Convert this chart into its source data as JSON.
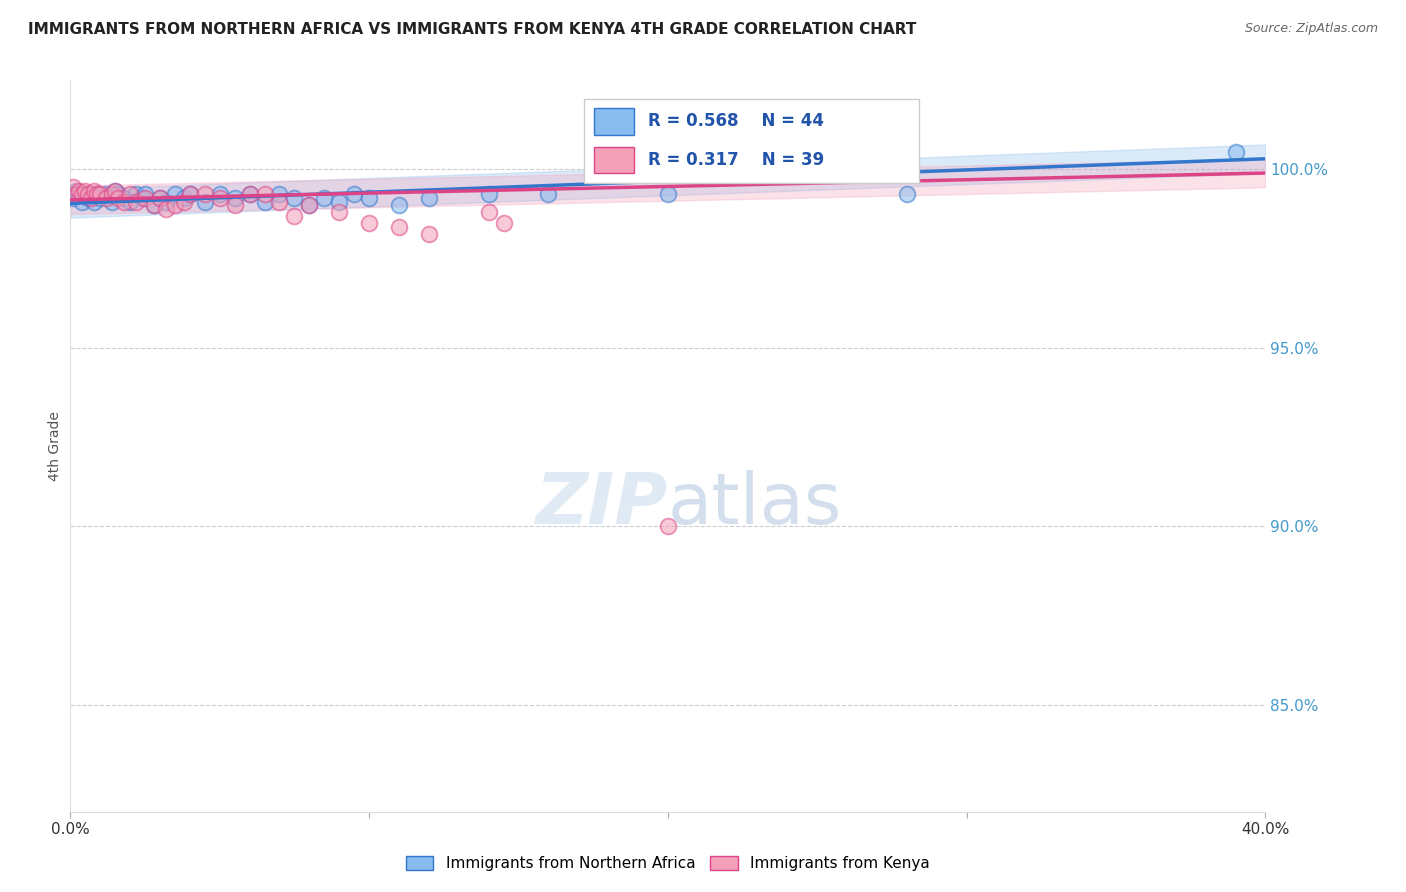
{
  "title": "IMMIGRANTS FROM NORTHERN AFRICA VS IMMIGRANTS FROM KENYA 4TH GRADE CORRELATION CHART",
  "source": "Source: ZipAtlas.com",
  "ylabel": "4th Grade",
  "yaxis_labels": [
    "100.0%",
    "95.0%",
    "90.0%",
    "85.0%"
  ],
  "yaxis_values": [
    1.0,
    0.95,
    0.9,
    0.85
  ],
  "xlim": [
    0.0,
    0.4
  ],
  "ylim": [
    0.82,
    1.025
  ],
  "legend_label1": "Immigrants from Northern Africa",
  "legend_label2": "Immigrants from Kenya",
  "R1": 0.568,
  "N1": 44,
  "R2": 0.317,
  "N2": 39,
  "color_blue": "#88bbee",
  "color_pink": "#f4a0b8",
  "color_blue_line": "#3377cc",
  "color_pink_line": "#dd4488",
  "color_blue_text": "#2255aa",
  "color_right_axis": "#4499cc",
  "scatter_blue": [
    [
      0.001,
      0.992
    ],
    [
      0.002,
      0.994
    ],
    [
      0.003,
      0.993
    ],
    [
      0.004,
      0.991
    ],
    [
      0.005,
      0.993
    ],
    [
      0.006,
      0.992
    ],
    [
      0.007,
      0.993
    ],
    [
      0.008,
      0.991
    ],
    [
      0.009,
      0.993
    ],
    [
      0.01,
      0.992
    ],
    [
      0.012,
      0.993
    ],
    [
      0.014,
      0.991
    ],
    [
      0.015,
      0.994
    ],
    [
      0.016,
      0.993
    ],
    [
      0.018,
      0.992
    ],
    [
      0.02,
      0.991
    ],
    [
      0.022,
      0.993
    ],
    [
      0.024,
      0.992
    ],
    [
      0.025,
      0.993
    ],
    [
      0.028,
      0.99
    ],
    [
      0.03,
      0.992
    ],
    [
      0.032,
      0.991
    ],
    [
      0.035,
      0.993
    ],
    [
      0.038,
      0.992
    ],
    [
      0.04,
      0.993
    ],
    [
      0.045,
      0.991
    ],
    [
      0.05,
      0.993
    ],
    [
      0.055,
      0.992
    ],
    [
      0.06,
      0.993
    ],
    [
      0.065,
      0.991
    ],
    [
      0.07,
      0.993
    ],
    [
      0.075,
      0.992
    ],
    [
      0.08,
      0.99
    ],
    [
      0.085,
      0.992
    ],
    [
      0.09,
      0.991
    ],
    [
      0.095,
      0.993
    ],
    [
      0.1,
      0.992
    ],
    [
      0.11,
      0.99
    ],
    [
      0.12,
      0.992
    ],
    [
      0.14,
      0.993
    ],
    [
      0.16,
      0.993
    ],
    [
      0.2,
      0.993
    ],
    [
      0.28,
      0.993
    ],
    [
      0.39,
      1.005
    ]
  ],
  "scatter_pink": [
    [
      0.001,
      0.995
    ],
    [
      0.002,
      0.993
    ],
    [
      0.003,
      0.994
    ],
    [
      0.004,
      0.993
    ],
    [
      0.005,
      0.994
    ],
    [
      0.006,
      0.993
    ],
    [
      0.007,
      0.992
    ],
    [
      0.008,
      0.994
    ],
    [
      0.009,
      0.993
    ],
    [
      0.01,
      0.993
    ],
    [
      0.012,
      0.992
    ],
    [
      0.014,
      0.993
    ],
    [
      0.015,
      0.994
    ],
    [
      0.016,
      0.992
    ],
    [
      0.018,
      0.991
    ],
    [
      0.02,
      0.993
    ],
    [
      0.022,
      0.991
    ],
    [
      0.025,
      0.992
    ],
    [
      0.028,
      0.99
    ],
    [
      0.03,
      0.992
    ],
    [
      0.032,
      0.989
    ],
    [
      0.035,
      0.99
    ],
    [
      0.038,
      0.991
    ],
    [
      0.04,
      0.993
    ],
    [
      0.045,
      0.993
    ],
    [
      0.05,
      0.992
    ],
    [
      0.055,
      0.99
    ],
    [
      0.06,
      0.993
    ],
    [
      0.065,
      0.993
    ],
    [
      0.07,
      0.991
    ],
    [
      0.075,
      0.987
    ],
    [
      0.08,
      0.99
    ],
    [
      0.09,
      0.988
    ],
    [
      0.1,
      0.985
    ],
    [
      0.11,
      0.984
    ],
    [
      0.12,
      0.982
    ],
    [
      0.14,
      0.988
    ],
    [
      0.145,
      0.985
    ],
    [
      0.2,
      0.9
    ]
  ],
  "blue_trend_x": [
    0.0,
    0.4
  ],
  "blue_trend_y": [
    0.9905,
    1.003
  ],
  "pink_trend_x": [
    0.0,
    0.4
  ],
  "pink_trend_y": [
    0.9915,
    0.999
  ]
}
